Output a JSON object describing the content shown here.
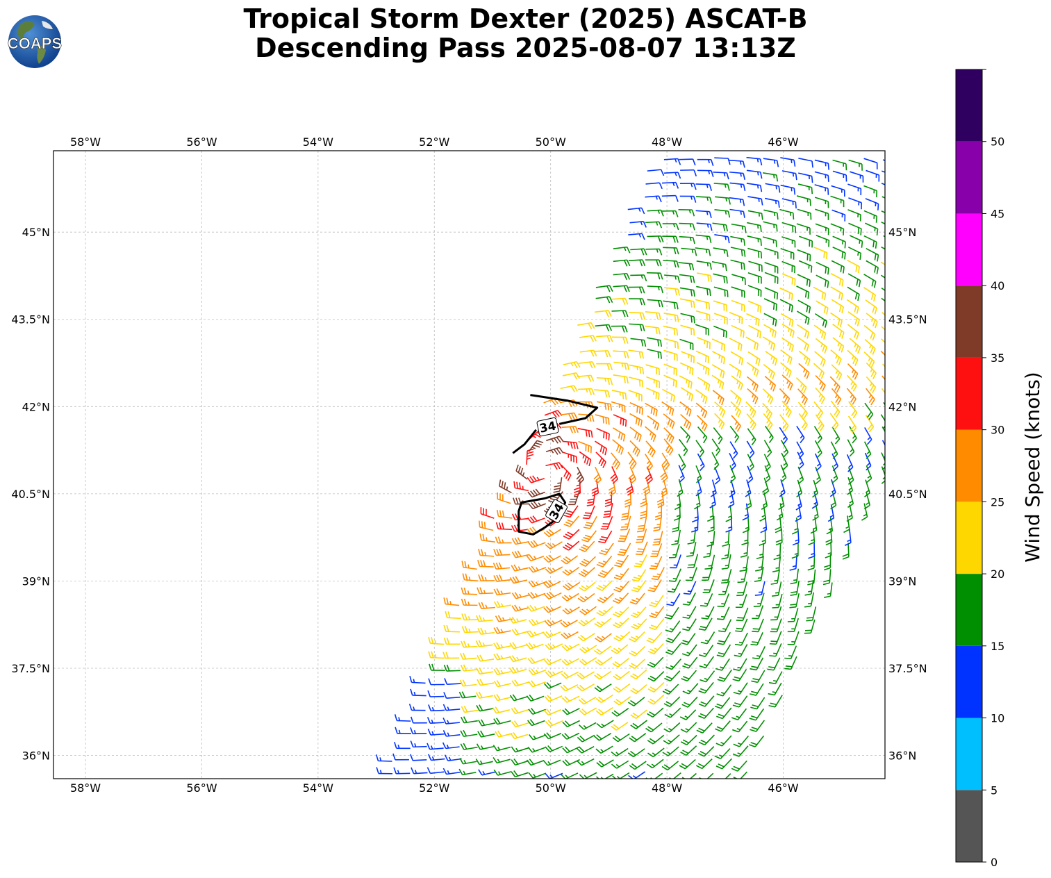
{
  "title": {
    "line1": "Tropical Storm Dexter (2025) ASCAT-B",
    "line2": "Descending Pass 2025-08-07 13:13Z"
  },
  "logo": {
    "text": "COAPS",
    "icon": "coaps-globe-logo"
  },
  "map": {
    "lon_range": [
      -58.55,
      -44.25
    ],
    "lat_range": [
      35.6,
      46.4
    ],
    "lon_ticks": [
      {
        "value": -58,
        "label": "58°W"
      },
      {
        "value": -56,
        "label": "56°W"
      },
      {
        "value": -54,
        "label": "54°W"
      },
      {
        "value": -52,
        "label": "52°W"
      },
      {
        "value": -50,
        "label": "50°W"
      },
      {
        "value": -48,
        "label": "48°W"
      },
      {
        "value": -46,
        "label": "46°W"
      }
    ],
    "lat_ticks": [
      {
        "value": 36,
        "label": "36°N"
      },
      {
        "value": 37.5,
        "label": "37.5°N"
      },
      {
        "value": 39,
        "label": "39°N"
      },
      {
        "value": 40.5,
        "label": "40.5°N"
      },
      {
        "value": 42,
        "label": "42°N"
      },
      {
        "value": 43.5,
        "label": "43.5°N"
      },
      {
        "value": 45,
        "label": "45°N"
      }
    ],
    "gridlines": true,
    "swath": {
      "corners_lonlat": [
        [
          -52.9,
          35.6
        ],
        [
          -46.6,
          35.6
        ],
        [
          -44.25,
          41.1
        ],
        [
          -44.25,
          46.4
        ],
        [
          -48.2,
          46.4
        ],
        [
          -52.9,
          35.6
        ]
      ]
    },
    "wind_field": {
      "description_source": "ASCAT-B wind barbs",
      "speed_bands_by_region": [
        {
          "region": "south-west edge",
          "speed_kt": 12,
          "color": "#0033ff"
        },
        {
          "region": "west swath",
          "speed_kt": 22,
          "color": "#ffd700"
        },
        {
          "region": "central swath",
          "speed_kt": 27,
          "color": "#ff8c00"
        },
        {
          "region": "inner core",
          "speed_kt": 32,
          "color": "#ff0000"
        },
        {
          "region": "east swath",
          "speed_kt": 17,
          "color": "#008f00"
        }
      ]
    },
    "contours": [
      {
        "label": "34",
        "value_kt": 34,
        "lonlat": [
          [
            -50.35,
            42.2
          ],
          [
            -49.7,
            42.1
          ],
          [
            -49.2,
            41.98
          ],
          [
            -49.4,
            41.8
          ],
          [
            -49.85,
            41.7
          ]
        ]
      },
      {
        "label": "34",
        "value_kt": 34,
        "lonlat": [
          [
            -50.65,
            41.2
          ],
          [
            -50.45,
            41.35
          ],
          [
            -50.25,
            41.6
          ]
        ]
      },
      {
        "label": "34",
        "value_kt": 34,
        "lonlat": [
          [
            -50.1,
            40.42
          ],
          [
            -49.85,
            40.5
          ],
          [
            -49.75,
            40.35
          ],
          [
            -49.85,
            40.1
          ],
          [
            -50.1,
            39.92
          ],
          [
            -50.3,
            39.8
          ],
          [
            -50.55,
            39.85
          ],
          [
            -50.55,
            40.2
          ],
          [
            -50.5,
            40.35
          ],
          [
            -50.1,
            40.42
          ]
        ]
      }
    ]
  },
  "colorbar": {
    "label": "Wind Speed (knots)",
    "bounds": [
      0,
      5,
      10,
      15,
      20,
      25,
      30,
      35,
      40,
      45,
      50,
      55
    ],
    "tick_labels": [
      "0",
      "5",
      "10",
      "15",
      "20",
      "25",
      "30",
      "35",
      "40",
      "45",
      "50"
    ],
    "colors": [
      "#555555",
      "#00bfff",
      "#0033ff",
      "#008f00",
      "#ffd700",
      "#ff8c00",
      "#ff1010",
      "#7f3a28",
      "#ff00ff",
      "#8800aa",
      "#300060"
    ]
  }
}
